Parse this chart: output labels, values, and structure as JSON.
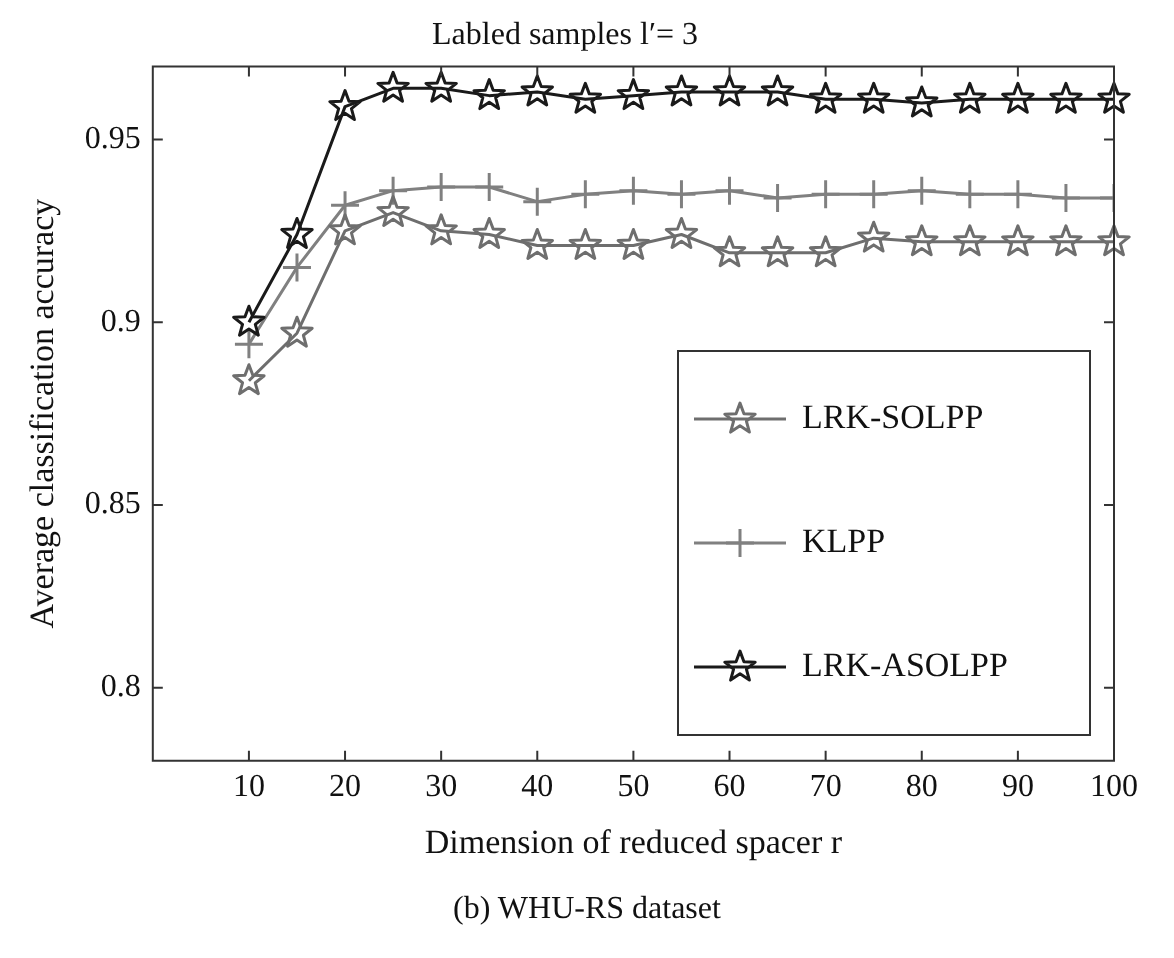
{
  "chart_data": {
    "type": "line",
    "title": "Labled samples l′= 3",
    "xlabel": "Dimension of reduced spacer r",
    "ylabel": "Average classification accuracy",
    "annotations": [
      "(b) WHU-RS dataset"
    ],
    "x": [
      10,
      15,
      20,
      25,
      30,
      35,
      40,
      45,
      50,
      55,
      60,
      65,
      70,
      75,
      80,
      85,
      90,
      95,
      100
    ],
    "xlim": [
      0,
      100
    ],
    "xticks": [
      10,
      20,
      30,
      40,
      50,
      60,
      70,
      80,
      90,
      100
    ],
    "ylim": [
      0.78,
      0.97
    ],
    "yticks": [
      0.8,
      0.85,
      0.9,
      0.95
    ],
    "grid": false,
    "legend": "right",
    "line_style": "solid",
    "series": [
      {
        "name": "LRK-SOLPP",
        "color": "#6e6e6e",
        "marker": "star",
        "values": [
          0.884,
          0.897,
          0.925,
          0.93,
          0.925,
          0.924,
          0.921,
          0.921,
          0.921,
          0.924,
          0.919,
          0.919,
          0.919,
          0.923,
          0.922,
          0.922,
          0.922,
          0.922,
          0.922
        ]
      },
      {
        "name": "KLPP",
        "color": "#808080",
        "marker": "cross",
        "values": [
          0.894,
          0.915,
          0.932,
          0.936,
          0.937,
          0.937,
          0.933,
          0.935,
          0.936,
          0.935,
          0.936,
          0.934,
          0.935,
          0.935,
          0.936,
          0.935,
          0.935,
          0.934,
          0.934
        ]
      },
      {
        "name": "LRK-ASOLPP",
        "color": "#1a1a1a",
        "marker": "star",
        "values": [
          0.9,
          0.924,
          0.959,
          0.964,
          0.964,
          0.962,
          0.963,
          0.961,
          0.962,
          0.963,
          0.963,
          0.963,
          0.961,
          0.961,
          0.96,
          0.961,
          0.961,
          0.961,
          0.961
        ]
      }
    ]
  }
}
